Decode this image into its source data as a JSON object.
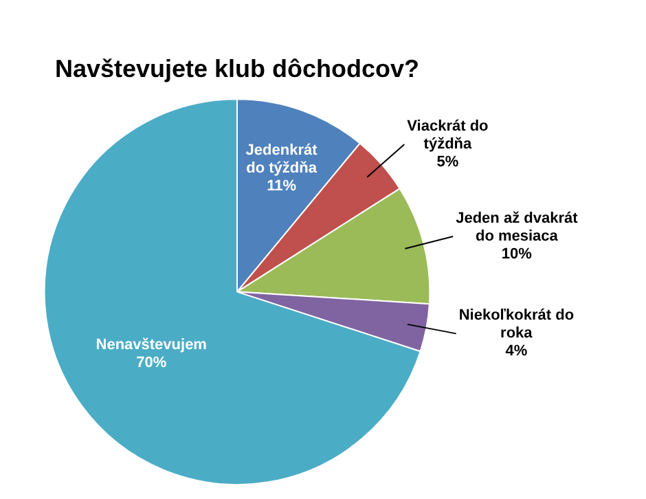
{
  "chart_data": {
    "type": "pie",
    "title": "Navštevujete klub dôchodcov?",
    "categories": [
      "Jedenkrát do týždňa",
      "Viackrát do týždňa",
      "Jeden až dvakrát do mesiaca",
      "Niekoľkokrát do roka",
      "Nenavštevujem"
    ],
    "values": [
      11,
      5,
      10,
      4,
      70
    ],
    "colors": [
      "#4f81bd",
      "#c0504d",
      "#9bbb59",
      "#8064a2",
      "#4bacc6"
    ],
    "value_labels": [
      "11%",
      "5%",
      "10%",
      "4%",
      "70%"
    ],
    "legend": false
  }
}
